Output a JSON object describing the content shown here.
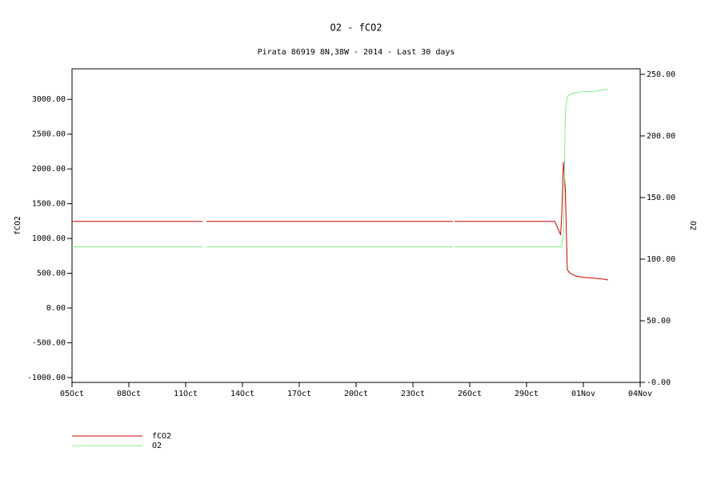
{
  "chart_data": {
    "type": "line",
    "title": "O2 - fCO2",
    "subtitle": "Pirata 86919 8N,38W - 2014 - Last 30 days",
    "y_label": "fCO2",
    "y2_label": "O2",
    "x": [
      0,
      6.9,
      7.0,
      7.1,
      20.1,
      20.15,
      20.2,
      25.5,
      25.8,
      25.85,
      25.95,
      26.05,
      26.15,
      26.3,
      26.6,
      27.0,
      27.5,
      27.9,
      28.2,
      28.3
    ],
    "xlim": [
      0,
      30
    ],
    "xticks": [
      {
        "value": 0,
        "label": "05Oct"
      },
      {
        "value": 3,
        "label": "08Oct"
      },
      {
        "value": 6,
        "label": "11Oct"
      },
      {
        "value": 9,
        "label": "14Oct"
      },
      {
        "value": 12,
        "label": "17Oct"
      },
      {
        "value": 15,
        "label": "20Oct"
      },
      {
        "value": 18,
        "label": "23Oct"
      },
      {
        "value": 21,
        "label": "26Oct"
      },
      {
        "value": 24,
        "label": "29Oct"
      },
      {
        "value": 27,
        "label": "01Nov"
      },
      {
        "value": 30,
        "label": "04Nov"
      }
    ],
    "ylim": [
      -1070,
      3440
    ],
    "yticks": [
      {
        "value": -1000,
        "label": "-1000.00"
      },
      {
        "value": -500,
        "label": "-500.00"
      },
      {
        "value": 0,
        "label": "0.00"
      },
      {
        "value": 500,
        "label": "500.00"
      },
      {
        "value": 1000,
        "label": "1000.00"
      },
      {
        "value": 1500,
        "label": "1500.00"
      },
      {
        "value": 2000,
        "label": "2000.00"
      },
      {
        "value": 2500,
        "label": "2500.00"
      },
      {
        "value": 3000,
        "label": "3000.00"
      }
    ],
    "y2lim": [
      0,
      254.5
    ],
    "y2ticks": [
      {
        "value": 0,
        "label": "-0.00"
      },
      {
        "value": 50,
        "label": "50.00"
      },
      {
        "value": 100,
        "label": "100.00"
      },
      {
        "value": 150,
        "label": "150.00"
      },
      {
        "value": 200,
        "label": "200.00"
      },
      {
        "value": 250,
        "label": "250.00"
      }
    ],
    "series": [
      {
        "name": "fCO2",
        "color": "#cc0000",
        "values": [
          1245,
          1245,
          null,
          1245,
          1245,
          null,
          1245,
          1245,
          1050,
          1300,
          2100,
          1700,
          550,
          500,
          460,
          440,
          430,
          420,
          410,
          400
        ]
      },
      {
        "name": "O2",
        "color": "#88e888",
        "axis": "y2",
        "values": [
          110,
          110,
          null,
          110,
          110,
          null,
          110,
          110,
          110,
          110,
          120,
          220,
          232,
          234,
          235,
          236,
          236,
          237,
          238,
          237
        ]
      }
    ]
  }
}
